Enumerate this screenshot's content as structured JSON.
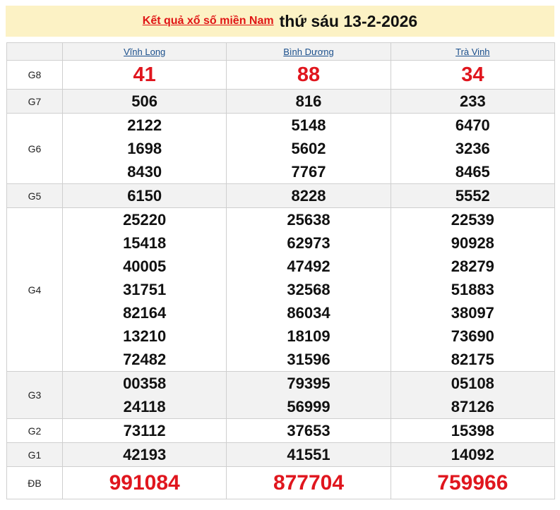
{
  "header": {
    "link_label": "Kết quả xổ số miền Nam",
    "date_label": "thứ sáu 13-2-2026"
  },
  "colors": {
    "accent_red": "#e0161e",
    "banner_bg": "#fcf2c5",
    "link_blue": "#1a4f8c"
  },
  "provinces": [
    "Vĩnh Long",
    "Bình Dương",
    "Trà Vinh"
  ],
  "prizes": [
    {
      "label": "G8",
      "results": [
        [
          "41"
        ],
        [
          "88"
        ],
        [
          "34"
        ]
      ]
    },
    {
      "label": "G7",
      "results": [
        [
          "506"
        ],
        [
          "816"
        ],
        [
          "233"
        ]
      ]
    },
    {
      "label": "G6",
      "results": [
        [
          "2122",
          "1698",
          "8430"
        ],
        [
          "5148",
          "5602",
          "7767"
        ],
        [
          "6470",
          "3236",
          "8465"
        ]
      ]
    },
    {
      "label": "G5",
      "results": [
        [
          "6150"
        ],
        [
          "8228"
        ],
        [
          "5552"
        ]
      ]
    },
    {
      "label": "G4",
      "results": [
        [
          "25220",
          "15418",
          "40005",
          "31751",
          "82164",
          "13210",
          "72482"
        ],
        [
          "25638",
          "62973",
          "47492",
          "32568",
          "86034",
          "18109",
          "31596"
        ],
        [
          "22539",
          "90928",
          "28279",
          "51883",
          "38097",
          "73690",
          "82175"
        ]
      ]
    },
    {
      "label": "G3",
      "results": [
        [
          "00358",
          "24118"
        ],
        [
          "79395",
          "56999"
        ],
        [
          "05108",
          "87126"
        ]
      ]
    },
    {
      "label": "G2",
      "results": [
        [
          "73112"
        ],
        [
          "37653"
        ],
        [
          "15398"
        ]
      ]
    },
    {
      "label": "G1",
      "results": [
        [
          "42193"
        ],
        [
          "41551"
        ],
        [
          "14092"
        ]
      ]
    },
    {
      "label": "ĐB",
      "results": [
        [
          "991084"
        ],
        [
          "877704"
        ],
        [
          "759966"
        ]
      ]
    }
  ]
}
